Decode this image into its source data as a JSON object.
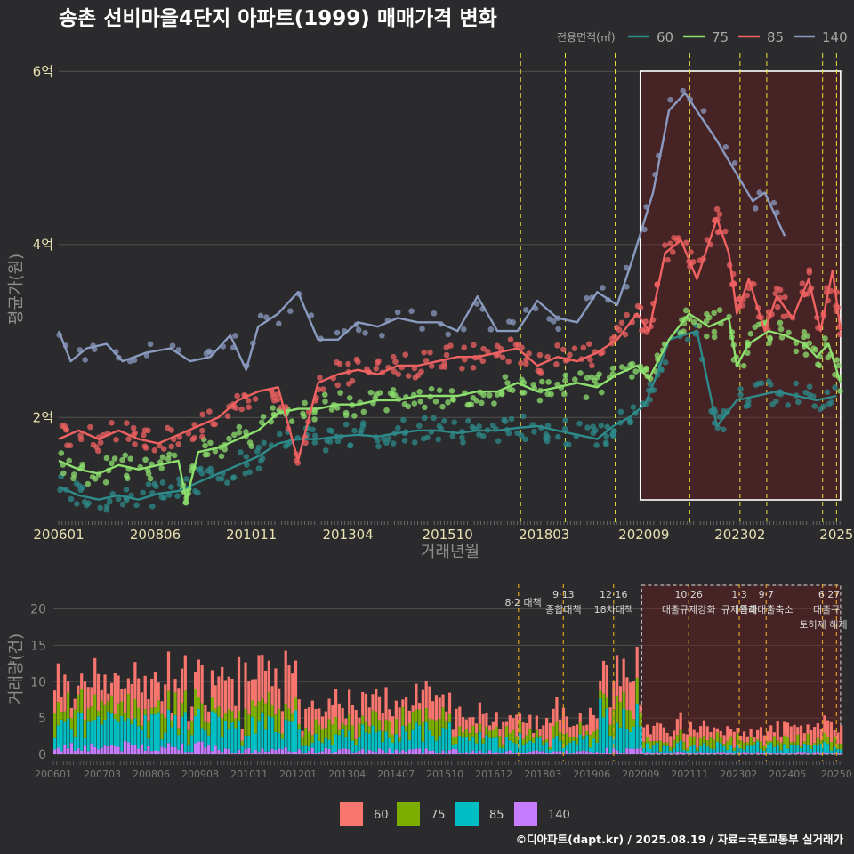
{
  "chart_data": [
    {
      "type": "line",
      "title": "송촌 선비마을4단지 아파트(1999) 매매가격 변화",
      "xlabel": "거래년월",
      "ylabel": "평균가(원)",
      "x_ticks": [
        "200601",
        "200806",
        "201011",
        "201304",
        "201510",
        "201803",
        "202009",
        "202302",
        "2025"
      ],
      "y_ticks": [
        {
          "value": 2,
          "label": "2억"
        },
        {
          "value": 4,
          "label": "4억"
        },
        {
          "value": 6,
          "label": "6억"
        }
      ],
      "x_range": [
        2006.0,
        2025.67
      ],
      "y_range": [
        0.8,
        6.25
      ],
      "legend_title": "전용면적(㎡)",
      "highlight_range": [
        2020.58,
        2025.6
      ],
      "policy_lines": [
        2017.58,
        2018.7,
        2019.95,
        2021.82,
        2023.08,
        2023.75,
        2025.15,
        2025.5
      ],
      "series": [
        {
          "name": "60",
          "color": "#2e8b8b",
          "points": [
            [
              2006.0,
              1.2
            ],
            [
              2006.5,
              1.1
            ],
            [
              2007.0,
              1.05
            ],
            [
              2007.5,
              1.1
            ],
            [
              2008.0,
              1.05
            ],
            [
              2008.5,
              1.12
            ],
            [
              2009.0,
              1.15
            ],
            [
              2009.5,
              1.25
            ],
            [
              2010.0,
              1.35
            ],
            [
              2010.5,
              1.45
            ],
            [
              2011.0,
              1.55
            ],
            [
              2011.5,
              1.7
            ],
            [
              2012.0,
              1.75
            ],
            [
              2012.5,
              1.75
            ],
            [
              2013.0,
              1.78
            ],
            [
              2013.5,
              1.8
            ],
            [
              2014.0,
              1.78
            ],
            [
              2014.5,
              1.82
            ],
            [
              2015.0,
              1.85
            ],
            [
              2015.5,
              1.85
            ],
            [
              2016.0,
              1.82
            ],
            [
              2016.5,
              1.85
            ],
            [
              2017.0,
              1.85
            ],
            [
              2017.5,
              1.88
            ],
            [
              2018.0,
              1.9
            ],
            [
              2018.5,
              1.85
            ],
            [
              2019.0,
              1.8
            ],
            [
              2019.5,
              1.75
            ],
            [
              2019.9,
              1.9
            ],
            [
              2020.3,
              2.0
            ],
            [
              2020.7,
              2.15
            ],
            [
              2021.0,
              2.5
            ],
            [
              2021.3,
              2.9
            ],
            [
              2022.0,
              3.0
            ],
            [
              2022.5,
              1.9
            ],
            [
              2023.0,
              2.2
            ],
            [
              2023.5,
              2.25
            ],
            [
              2024.0,
              2.3
            ],
            [
              2024.5,
              2.25
            ],
            [
              2025.0,
              2.2
            ],
            [
              2025.5,
              2.25
            ]
          ]
        },
        {
          "name": "75",
          "color": "#8ee06e",
          "points": [
            [
              2006.0,
              1.5
            ],
            [
              2006.5,
              1.4
            ],
            [
              2007.0,
              1.35
            ],
            [
              2007.5,
              1.45
            ],
            [
              2008.0,
              1.4
            ],
            [
              2008.5,
              1.45
            ],
            [
              2009.0,
              1.5
            ],
            [
              2009.2,
              1.05
            ],
            [
              2009.5,
              1.6
            ],
            [
              2010.0,
              1.65
            ],
            [
              2010.5,
              1.75
            ],
            [
              2011.0,
              1.85
            ],
            [
              2011.5,
              2.05
            ],
            [
              2012.0,
              2.1
            ],
            [
              2012.5,
              2.1
            ],
            [
              2013.0,
              2.15
            ],
            [
              2013.5,
              2.15
            ],
            [
              2014.0,
              2.2
            ],
            [
              2014.5,
              2.2
            ],
            [
              2015.0,
              2.25
            ],
            [
              2015.5,
              2.25
            ],
            [
              2016.0,
              2.25
            ],
            [
              2016.5,
              2.3
            ],
            [
              2017.0,
              2.3
            ],
            [
              2017.5,
              2.4
            ],
            [
              2018.0,
              2.3
            ],
            [
              2018.5,
              2.35
            ],
            [
              2019.0,
              2.4
            ],
            [
              2019.5,
              2.35
            ],
            [
              2020.0,
              2.5
            ],
            [
              2020.5,
              2.6
            ],
            [
              2020.8,
              2.45
            ],
            [
              2021.3,
              2.9
            ],
            [
              2021.8,
              3.2
            ],
            [
              2022.3,
              3.05
            ],
            [
              2022.8,
              3.15
            ],
            [
              2023.0,
              2.6
            ],
            [
              2023.3,
              2.85
            ],
            [
              2023.8,
              3.0
            ],
            [
              2024.2,
              2.95
            ],
            [
              2024.7,
              2.85
            ],
            [
              2025.0,
              2.7
            ],
            [
              2025.3,
              2.85
            ],
            [
              2025.6,
              2.4
            ]
          ]
        },
        {
          "name": "85",
          "color": "#f06262",
          "points": [
            [
              2006.0,
              1.75
            ],
            [
              2006.5,
              1.85
            ],
            [
              2007.0,
              1.75
            ],
            [
              2007.5,
              1.85
            ],
            [
              2008.0,
              1.75
            ],
            [
              2008.5,
              1.7
            ],
            [
              2009.0,
              1.8
            ],
            [
              2009.5,
              1.9
            ],
            [
              2010.0,
              2.0
            ],
            [
              2010.5,
              2.2
            ],
            [
              2011.0,
              2.3
            ],
            [
              2011.5,
              2.35
            ],
            [
              2012.0,
              1.5
            ],
            [
              2012.5,
              2.4
            ],
            [
              2013.0,
              2.5
            ],
            [
              2013.5,
              2.55
            ],
            [
              2014.0,
              2.5
            ],
            [
              2014.5,
              2.6
            ],
            [
              2015.0,
              2.6
            ],
            [
              2015.5,
              2.65
            ],
            [
              2016.0,
              2.7
            ],
            [
              2016.5,
              2.7
            ],
            [
              2017.0,
              2.75
            ],
            [
              2017.5,
              2.8
            ],
            [
              2018.0,
              2.6
            ],
            [
              2018.5,
              2.7
            ],
            [
              2019.0,
              2.65
            ],
            [
              2019.5,
              2.75
            ],
            [
              2020.0,
              2.9
            ],
            [
              2020.5,
              3.2
            ],
            [
              2020.8,
              3.0
            ],
            [
              2021.2,
              3.9
            ],
            [
              2021.6,
              4.05
            ],
            [
              2022.0,
              3.6
            ],
            [
              2022.5,
              4.3
            ],
            [
              2022.8,
              3.9
            ],
            [
              2023.0,
              3.2
            ],
            [
              2023.3,
              3.6
            ],
            [
              2023.7,
              3.0
            ],
            [
              2024.0,
              3.4
            ],
            [
              2024.4,
              3.15
            ],
            [
              2024.8,
              3.6
            ],
            [
              2025.1,
              3.0
            ],
            [
              2025.4,
              3.7
            ],
            [
              2025.6,
              3.0
            ]
          ]
        },
        {
          "name": "140",
          "color": "#8a9ac0",
          "points": [
            [
              2006.0,
              3.0
            ],
            [
              2006.3,
              2.65
            ],
            [
              2006.7,
              2.8
            ],
            [
              2007.2,
              2.85
            ],
            [
              2007.6,
              2.65
            ],
            [
              2008.2,
              2.75
            ],
            [
              2008.8,
              2.8
            ],
            [
              2009.3,
              2.65
            ],
            [
              2009.8,
              2.7
            ],
            [
              2010.3,
              2.95
            ],
            [
              2010.7,
              2.55
            ],
            [
              2011.0,
              3.05
            ],
            [
              2011.5,
              3.2
            ],
            [
              2012.0,
              3.45
            ],
            [
              2012.5,
              2.9
            ],
            [
              2013.0,
              2.9
            ],
            [
              2013.5,
              3.1
            ],
            [
              2014.0,
              3.05
            ],
            [
              2014.5,
              3.15
            ],
            [
              2015.0,
              3.1
            ],
            [
              2015.5,
              3.1
            ],
            [
              2016.0,
              3.0
            ],
            [
              2016.5,
              3.4
            ],
            [
              2017.0,
              3.0
            ],
            [
              2017.5,
              3.0
            ],
            [
              2018.0,
              3.35
            ],
            [
              2018.5,
              3.15
            ],
            [
              2019.0,
              3.1
            ],
            [
              2019.5,
              3.45
            ],
            [
              2020.0,
              3.3
            ],
            [
              2020.4,
              3.85
            ],
            [
              2020.9,
              4.6
            ],
            [
              2021.3,
              5.55
            ],
            [
              2021.7,
              5.75
            ],
            [
              2022.5,
              5.2
            ],
            [
              2023.4,
              4.5
            ],
            [
              2023.7,
              4.6
            ],
            [
              2024.2,
              4.1
            ]
          ]
        }
      ]
    },
    {
      "type": "bar",
      "ylabel": "거래량(건)",
      "stacked": true,
      "x_ticks": [
        "200601",
        "200703",
        "200806",
        "200908",
        "201011",
        "201201",
        "201304",
        "201407",
        "201510",
        "201612",
        "201803",
        "201906",
        "202009",
        "202111",
        "202302",
        "202405",
        "20250"
      ],
      "y_ticks": [
        0,
        5,
        10,
        15,
        20
      ],
      "y_range": [
        0,
        23
      ],
      "x_range": [
        2006.0,
        2025.67
      ],
      "legend": [
        {
          "name": "60",
          "color": "#f8766d"
        },
        {
          "name": "75",
          "color": "#7cae00"
        },
        {
          "name": "85",
          "color": "#00bfc4"
        },
        {
          "name": "140",
          "color": "#c77cff"
        }
      ],
      "highlight_range": [
        2020.65,
        2025.6
      ],
      "policy_lines": [
        2017.58,
        2018.7,
        2019.95,
        2021.82,
        2023.08,
        2023.75,
        2025.15,
        2025.5
      ],
      "annotations": [
        {
          "x": 2017.58,
          "lines": [
            "8·2 대책"
          ]
        },
        {
          "x": 2018.7,
          "lines": [
            "9·13",
            "종합대책"
          ]
        },
        {
          "x": 2019.95,
          "lines": [
            "12·16",
            "18차대책"
          ]
        },
        {
          "x": 2021.82,
          "lines": [
            "10·26",
            "대출규제강화"
          ]
        },
        {
          "x": 2023.08,
          "lines": [
            "1·3",
            "규제완화"
          ]
        },
        {
          "x": 2023.75,
          "lines": [
            "9·7",
            "특례대출축소"
          ]
        },
        {
          "x": 2025.15,
          "lines": [
            "",
            "토허제 해제"
          ]
        },
        {
          "x": 2025.5,
          "lines": [
            "6·27",
            "대출규"
          ]
        }
      ],
      "segments": [
        {
          "from": 2006.0,
          "to": 2010.0,
          "values": [
            3,
            2,
            3,
            1
          ]
        },
        {
          "from": 2010.0,
          "to": 2012.0,
          "values": [
            4,
            2,
            3,
            0.5
          ]
        },
        {
          "from": 2012.0,
          "to": 2016.0,
          "values": [
            2.5,
            1.5,
            2,
            0.5
          ]
        },
        {
          "from": 2016.0,
          "to": 2019.5,
          "values": [
            2,
            1,
            1.5,
            0.3
          ]
        },
        {
          "from": 2019.5,
          "to": 2020.6,
          "values": [
            3,
            2,
            4,
            0.5
          ]
        },
        {
          "from": 2020.6,
          "to": 2025.7,
          "values": [
            1.5,
            0.8,
            0.8,
            0.2
          ]
        }
      ]
    }
  ],
  "credit": "©디아파트(dapt.kr) / 2025.08.19 / 자료=국토교통부 실거래가"
}
